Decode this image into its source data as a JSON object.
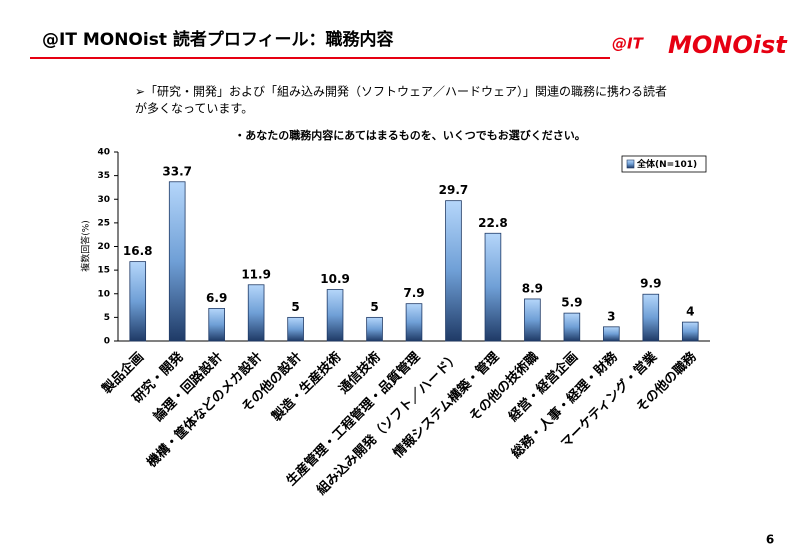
{
  "header": {
    "title": "@IT MONOist 読者プロフィール：職務内容",
    "logo_prefix": "@IT",
    "logo_main": "MONOist"
  },
  "note": [
    "➢「研究・開発」および「組み込み開発（ソフトウェア／ハードウェア）」関連の職務に携わる読者",
    "が多くなっています。"
  ],
  "chart_data": {
    "type": "bar",
    "title": "・あなたの職務内容にあてはまるものを、いくつでもお選びください。",
    "y_label": "複数回答(%)",
    "categories": [
      "製品企画",
      "研究・開発",
      "論理・回路設計",
      "機構・筐体などのメカ設計",
      "その他の設計",
      "製造・生産技術",
      "通信技術",
      "生産管理・工程管理・品質管理",
      "組み込み開発（ソフト／ハード）",
      "情報システム構築・管理",
      "その他の技術職",
      "経営・経営企画",
      "総務・人事・経理・財務",
      "マーケティング・営業",
      "その他の職務"
    ],
    "series": [
      {
        "name": "全体(N=101)",
        "color": "#4f81bd",
        "values": [
          16.8,
          33.7,
          6.9,
          11.9,
          5,
          10.9,
          5,
          7.9,
          29.7,
          22.8,
          8.9,
          5.9,
          3,
          9.9,
          4
        ]
      }
    ],
    "ylim": [
      0,
      40
    ],
    "yticks": [
      0,
      5,
      10,
      15,
      20,
      25,
      30,
      35,
      40
    ],
    "grid": false,
    "legend": "top-right"
  },
  "page_number": "6"
}
